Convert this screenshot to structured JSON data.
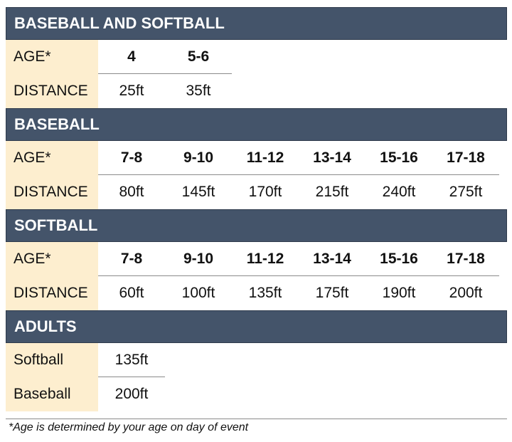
{
  "sections": {
    "both": {
      "title": "BASEBALL AND SOFTBALL",
      "age_label": "AGE*",
      "distance_label": "DISTANCE",
      "ages": [
        "4",
        "5-6"
      ],
      "distances": [
        "25ft",
        "35ft"
      ]
    },
    "baseball": {
      "title": "BASEBALL",
      "age_label": "AGE*",
      "distance_label": "DISTANCE",
      "ages": [
        "7-8",
        "9-10",
        "11-12",
        "13-14",
        "15-16",
        "17-18"
      ],
      "distances": [
        "80ft",
        "145ft",
        "170ft",
        "215ft",
        "240ft",
        "275ft"
      ]
    },
    "softball": {
      "title": "SOFTBALL",
      "age_label": "AGE*",
      "distance_label": "DISTANCE",
      "ages": [
        "7-8",
        "9-10",
        "11-12",
        "13-14",
        "15-16",
        "17-18"
      ],
      "distances": [
        "60ft",
        "100ft",
        "135ft",
        "175ft",
        "190ft",
        "200ft"
      ]
    },
    "adults": {
      "title": "ADULTS",
      "rows": [
        {
          "label": "Softball",
          "value": "135ft"
        },
        {
          "label": "Baseball",
          "value": "200ft"
        }
      ]
    }
  },
  "footnote": "*Age is determined by your age on day of event"
}
